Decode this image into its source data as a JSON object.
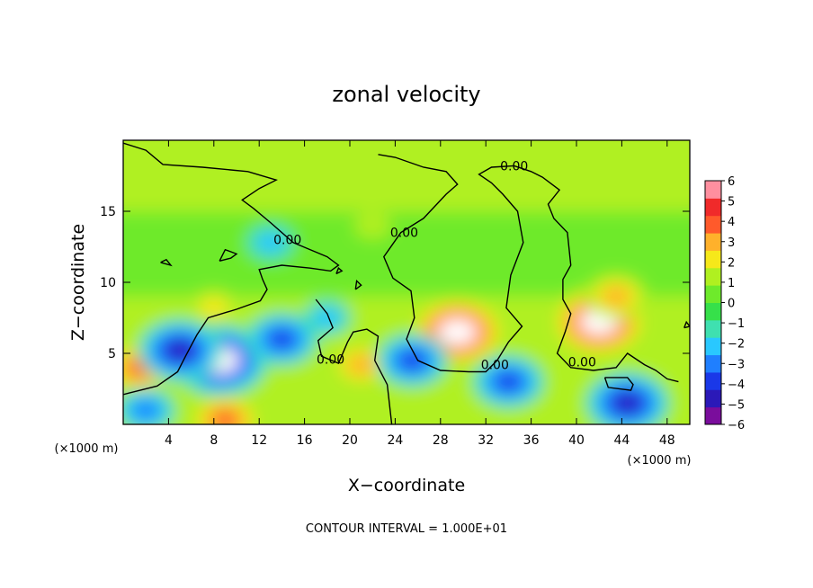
{
  "chart_data": {
    "type": "heatmap",
    "title": "zonal velocity",
    "xlabel": "X−coordinate",
    "ylabel": "Z−coordinate",
    "x_unit_left": "(×1000 m)",
    "x_unit_right": "(×1000 m)",
    "footer": "CONTOUR INTERVAL = 1.000E+01",
    "xlim": [
      0,
      50
    ],
    "ylim": [
      0,
      20
    ],
    "x_ticks": [
      4,
      8,
      12,
      16,
      20,
      24,
      28,
      32,
      36,
      40,
      44,
      48
    ],
    "y_ticks": [
      5,
      10,
      15
    ],
    "contour_label": "0.00",
    "colorbar": {
      "ticks": [
        6,
        5,
        4,
        3,
        2,
        1,
        0,
        -1,
        -2,
        -3,
        -4,
        -5,
        -6
      ],
      "tick_labels": [
        "6",
        "5",
        "4",
        "3",
        "2",
        "1",
        "0",
        "−1",
        "−2",
        "−3",
        "−4",
        "−5",
        "−6"
      ],
      "colors": [
        "#7a0d9c",
        "#2b19b8",
        "#1a38e8",
        "#1f7fff",
        "#29c8ff",
        "#3fe0b0",
        "#36e04a",
        "#6eea2b",
        "#b0f020",
        "#f6e81a",
        "#ffb12b",
        "#ff5a2b",
        "#f02a2a",
        "#ff8f9f"
      ]
    },
    "velocity_features": [
      {
        "kind": "maximum",
        "x": 29.5,
        "z": 6.5,
        "peak": 6
      },
      {
        "kind": "maximum",
        "x": 42.0,
        "z": 7.2,
        "peak": 6
      },
      {
        "kind": "maximum",
        "x": 43.5,
        "z": 9.0,
        "peak": 3
      },
      {
        "kind": "maximum",
        "x": 1.5,
        "z": 4.0,
        "peak": 4
      },
      {
        "kind": "maximum",
        "x": 21.0,
        "z": 4.2,
        "peak": 3
      },
      {
        "kind": "maximum",
        "x": 9.0,
        "z": 0.3,
        "peak": 4
      },
      {
        "kind": "maximum",
        "x": 8.0,
        "z": 8.2,
        "peak": 2
      },
      {
        "kind": "minimum",
        "x": 8.5,
        "z": 4.5,
        "peak": -6
      },
      {
        "kind": "minimum",
        "x": 5.0,
        "z": 5.2,
        "peak": -5
      },
      {
        "kind": "minimum",
        "x": 14.0,
        "z": 6.0,
        "peak": -4
      },
      {
        "kind": "minimum",
        "x": 25.5,
        "z": 4.5,
        "peak": -4
      },
      {
        "kind": "minimum",
        "x": 34.0,
        "z": 3.0,
        "peak": -4
      },
      {
        "kind": "minimum",
        "x": 44.5,
        "z": 1.5,
        "peak": -5
      },
      {
        "kind": "minimum",
        "x": 2.0,
        "z": 1.0,
        "peak": -3
      },
      {
        "kind": "minimum",
        "x": 13.0,
        "z": 12.8,
        "peak": -2
      },
      {
        "kind": "minimum",
        "x": 18.0,
        "z": 7.5,
        "peak": -2
      },
      {
        "kind": "maximum",
        "x": 22.0,
        "z": 14.0,
        "peak": 1
      }
    ],
    "zero_contours": [
      [
        [
          0,
          19.8
        ],
        [
          2,
          19.3
        ],
        [
          3.5,
          18.3
        ],
        [
          7,
          18.1
        ],
        [
          11,
          17.8
        ],
        [
          13.5,
          17.2
        ],
        [
          12,
          16.6
        ],
        [
          10.5,
          15.8
        ],
        [
          11.5,
          15.2
        ],
        [
          13,
          14.2
        ],
        [
          15,
          12.8
        ],
        [
          16.2,
          12.4
        ],
        [
          18,
          11.8
        ],
        [
          19,
          11.2
        ],
        [
          18.3,
          10.8
        ],
        [
          16.5,
          11.0
        ],
        [
          14,
          11.2
        ],
        [
          12,
          10.9
        ],
        [
          12.3,
          10.2
        ],
        [
          12.7,
          9.5
        ],
        [
          12.1,
          8.7
        ],
        [
          10,
          8.1
        ],
        [
          7.5,
          7.5
        ],
        [
          6.5,
          6.3
        ],
        [
          5.5,
          4.8
        ],
        [
          4.8,
          3.7
        ],
        [
          3,
          2.7
        ],
        [
          0.5,
          2.2
        ],
        [
          0,
          2.1
        ]
      ],
      [
        [
          17,
          8.8
        ],
        [
          18,
          7.8
        ],
        [
          18.5,
          6.8
        ],
        [
          17.2,
          5.9
        ],
        [
          17.5,
          4.8
        ],
        [
          19,
          4.3
        ],
        [
          19.8,
          5.8
        ],
        [
          20.3,
          6.5
        ],
        [
          21.5,
          6.7
        ],
        [
          22.5,
          6.2
        ],
        [
          22.2,
          4.5
        ],
        [
          23.3,
          2.8
        ],
        [
          23.7,
          0
        ]
      ],
      [
        [
          22.5,
          19.0
        ],
        [
          24,
          18.8
        ],
        [
          26.5,
          18.1
        ],
        [
          28.5,
          17.8
        ],
        [
          29.5,
          16.9
        ],
        [
          28.5,
          16.2
        ],
        [
          26.5,
          14.5
        ],
        [
          24.5,
          13.5
        ],
        [
          23,
          11.8
        ],
        [
          23.8,
          10.3
        ],
        [
          25.4,
          9.4
        ],
        [
          25.7,
          7.5
        ],
        [
          25.0,
          6.0
        ],
        [
          26,
          4.5
        ],
        [
          28,
          3.8
        ],
        [
          30.5,
          3.7
        ],
        [
          32,
          3.7
        ],
        [
          33,
          4.5
        ],
        [
          34,
          5.8
        ],
        [
          35.2,
          6.9
        ],
        [
          33.8,
          8.2
        ],
        [
          34.2,
          10.5
        ],
        [
          35.3,
          12.8
        ],
        [
          34.8,
          15.0
        ],
        [
          33.5,
          16.2
        ],
        [
          32.5,
          17.0
        ],
        [
          31.4,
          17.6
        ],
        [
          32.5,
          18.1
        ],
        [
          34.5,
          18.2
        ],
        [
          36,
          17.8
        ],
        [
          37,
          17.4
        ],
        [
          38.5,
          16.5
        ],
        [
          37.5,
          15.5
        ],
        [
          38,
          14.5
        ],
        [
          39.2,
          13.5
        ],
        [
          39.5,
          11.2
        ],
        [
          38.8,
          10.2
        ],
        [
          38.8,
          8.8
        ],
        [
          39.5,
          7.8
        ],
        [
          39,
          6.5
        ],
        [
          38.3,
          5.0
        ],
        [
          39.5,
          4.0
        ],
        [
          41.5,
          3.8
        ],
        [
          43.5,
          4.0
        ],
        [
          44.5,
          5.0
        ],
        [
          46,
          4.2
        ],
        [
          47,
          3.8
        ],
        [
          48,
          3.2
        ],
        [
          49,
          3.0
        ]
      ],
      [
        [
          42.5,
          3.3
        ],
        [
          44.5,
          3.3
        ],
        [
          45,
          2.8
        ],
        [
          44.8,
          2.4
        ],
        [
          42.8,
          2.6
        ],
        [
          42.5,
          3.3
        ]
      ],
      [
        [
          8.5,
          11.5
        ],
        [
          9.5,
          11.7
        ],
        [
          10,
          12.0
        ],
        [
          9,
          12.3
        ],
        [
          8.5,
          11.5
        ]
      ],
      [
        [
          3.3,
          11.4
        ],
        [
          4.2,
          11.2
        ],
        [
          3.8,
          11.6
        ],
        [
          3.3,
          11.4
        ]
      ],
      [
        [
          20.5,
          9.5
        ],
        [
          21,
          9.8
        ],
        [
          20.6,
          10.1
        ],
        [
          20.5,
          9.5
        ]
      ],
      [
        [
          18.8,
          10.6
        ],
        [
          19.3,
          10.8
        ],
        [
          19,
          11.0
        ],
        [
          18.8,
          10.6
        ]
      ],
      [
        [
          49.5,
          6.8
        ],
        [
          50,
          6.9
        ],
        [
          49.7,
          7.2
        ],
        [
          49.5,
          6.8
        ]
      ]
    ],
    "contour_labels_at": [
      [
        34.5,
        18.2
      ],
      [
        14.5,
        13.0
      ],
      [
        24.8,
        13.5
      ],
      [
        18.3,
        4.6
      ],
      [
        32.8,
        4.2
      ],
      [
        40.5,
        4.4
      ]
    ]
  }
}
